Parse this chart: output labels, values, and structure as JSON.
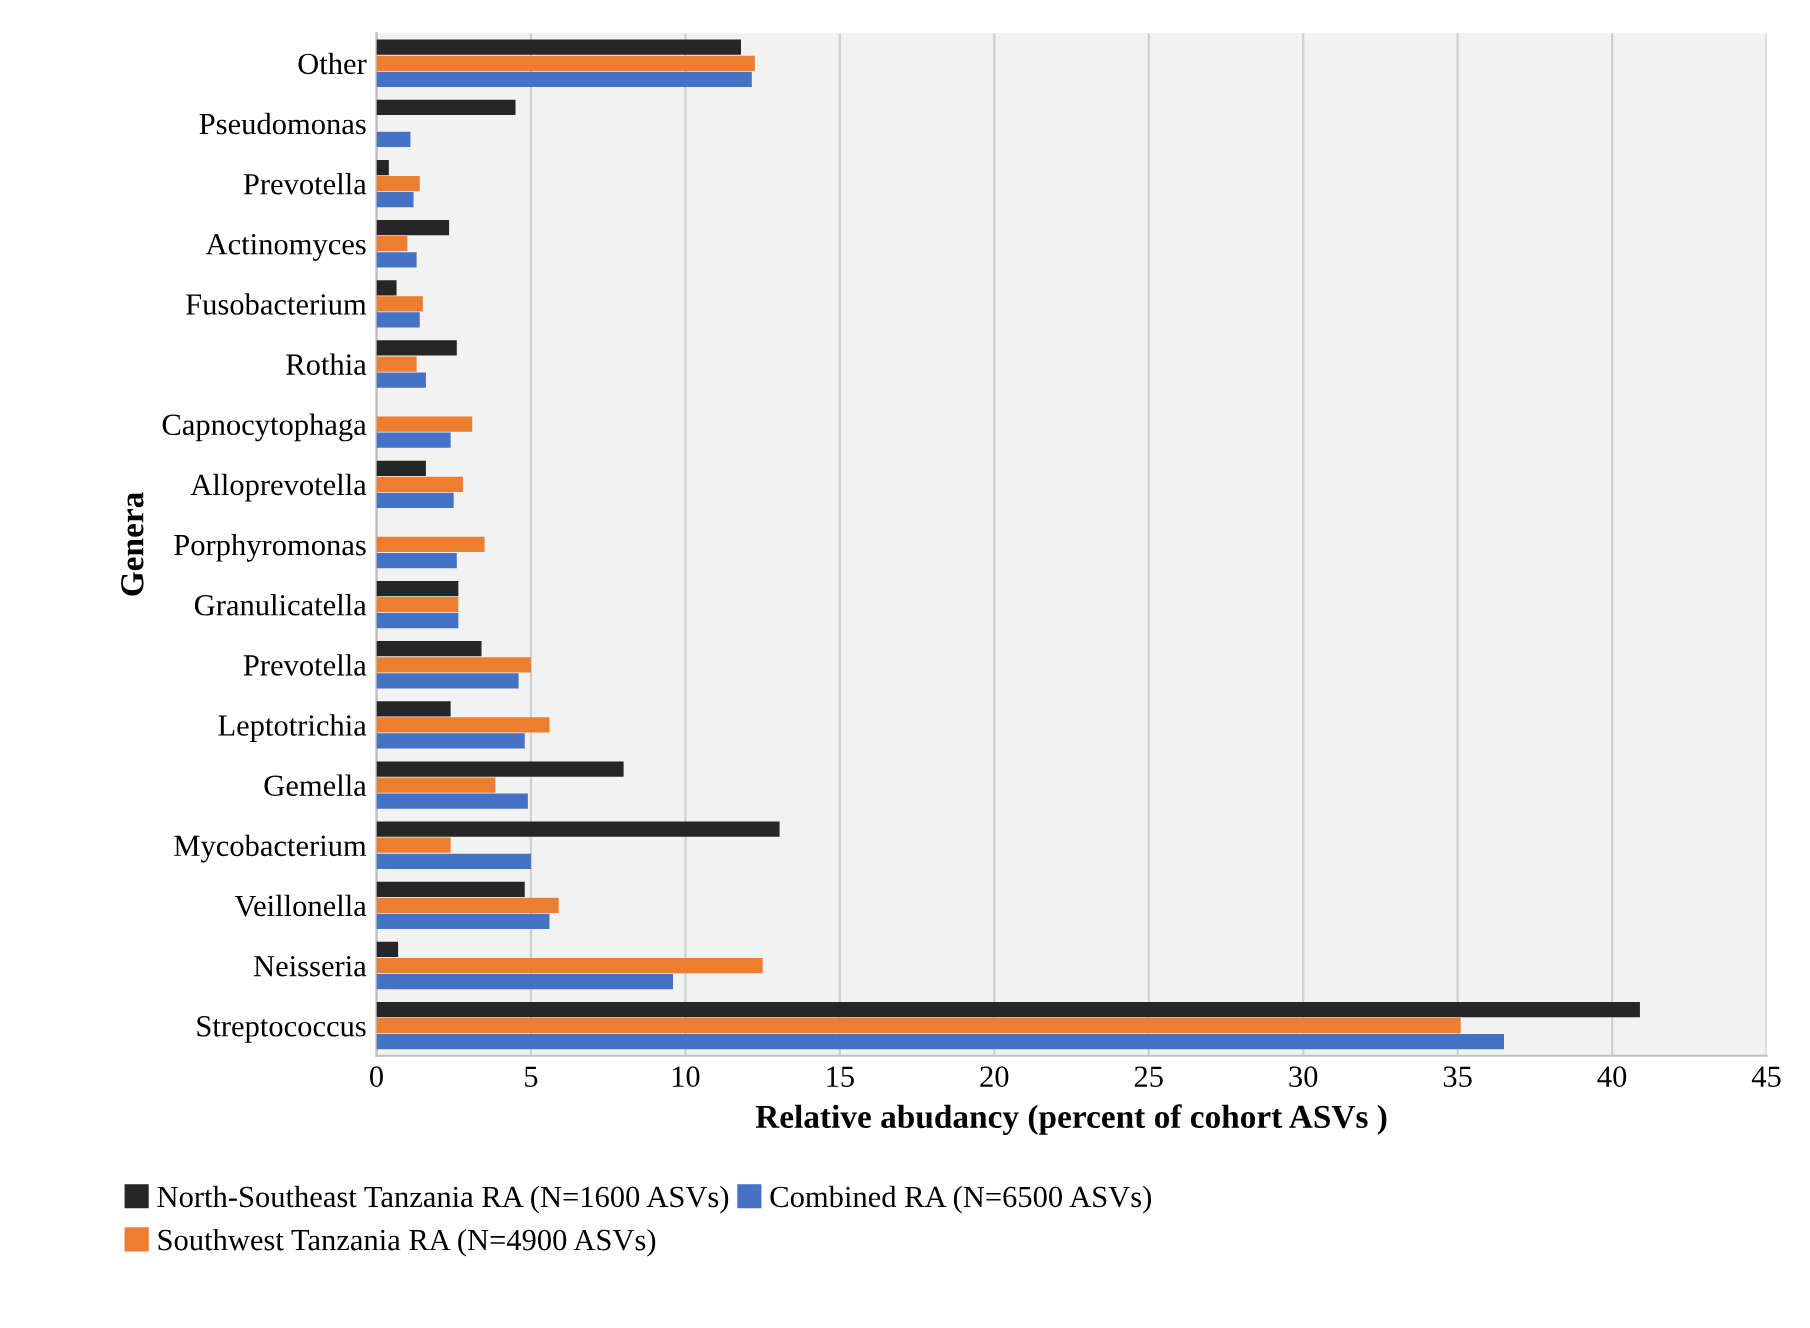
{
  "chart_data": {
    "type": "bar",
    "orientation": "horizontal",
    "categories": [
      "Other",
      "Pseudomonas",
      "Prevotella",
      "Actinomyces",
      "Fusobacterium",
      "Rothia",
      "Capnocytophaga",
      "Alloprevotella",
      "Porphyromonas",
      "Granulicatella",
      "Prevotella",
      "Leptotrichia",
      "Gemella",
      "Mycobacterium",
      "Veillonella",
      "Neisseria",
      "Streptococcus"
    ],
    "series": [
      {
        "name": "North-Southeast Tanzania RA (N=1600 ASVs)",
        "color": "#262626",
        "values": [
          11.8,
          4.5,
          0.4,
          2.35,
          0.65,
          2.6,
          0,
          1.6,
          0,
          2.65,
          3.4,
          2.4,
          8.0,
          13.05,
          4.8,
          0.7,
          40.9
        ]
      },
      {
        "name": "Southwest Tanzania RA (N=4900 ASVs)",
        "color": "#ed7d31",
        "values": [
          12.25,
          0,
          1.4,
          1.0,
          1.5,
          1.3,
          3.1,
          2.8,
          3.5,
          2.65,
          5.0,
          5.6,
          3.85,
          2.4,
          5.9,
          12.5,
          35.1
        ]
      },
      {
        "name": "Combined RA (N=6500 ASVs)",
        "color": "#4472c4",
        "values": [
          12.15,
          1.1,
          1.2,
          1.3,
          1.4,
          1.6,
          2.4,
          2.5,
          2.6,
          2.65,
          4.6,
          4.8,
          4.9,
          5.0,
          5.6,
          9.6,
          36.5
        ]
      }
    ],
    "xlabel": "Relative abudancy (percent of cohort ASVs )",
    "ylabel": "Genera",
    "xlim": [
      0,
      45
    ],
    "xticks": [
      0,
      5,
      10,
      15,
      20,
      25,
      30,
      35,
      40,
      45
    ],
    "grid": "x",
    "legend": "bottom"
  }
}
